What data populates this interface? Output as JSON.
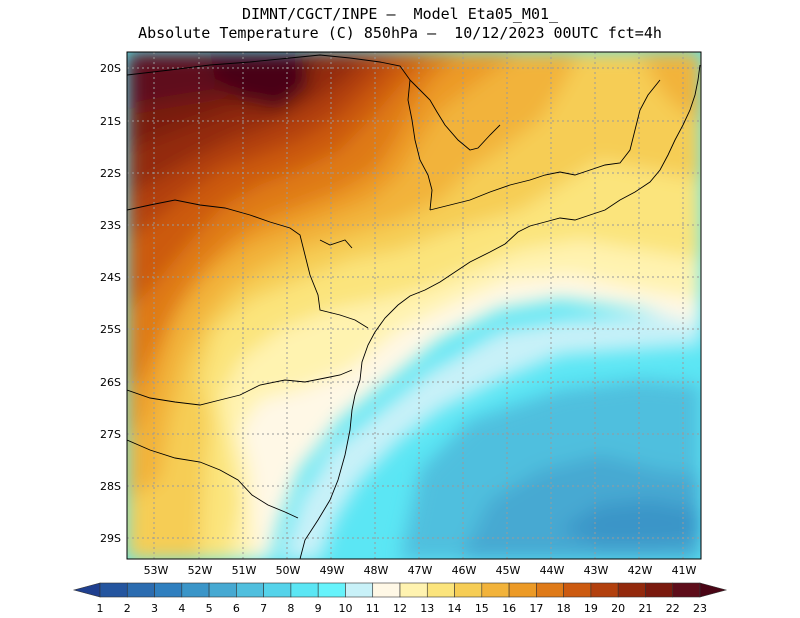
{
  "header": {
    "title_line1": "DIMNT/CGCT/INPE –  Model Eta05_M01_",
    "title_line2": "Absolute Temperature (C) 850hPa –  10/12/2023 00UTC fct=4h"
  },
  "map": {
    "lat_labels": [
      "20S",
      "21S",
      "22S",
      "23S",
      "24S",
      "25S",
      "26S",
      "27S",
      "28S",
      "29S"
    ],
    "lon_labels": [
      "53W",
      "52W",
      "51W",
      "50W",
      "49W",
      "48W",
      "47W",
      "46W",
      "45W",
      "44W",
      "43W",
      "42W",
      "41W"
    ],
    "lat_range": [
      -29.5,
      -19.2
    ],
    "lon_range": [
      -53.5,
      -40.7
    ]
  },
  "colorbar": {
    "levels": [
      "1",
      "2",
      "3",
      "4",
      "5",
      "6",
      "7",
      "8",
      "9",
      "10",
      "11",
      "12",
      "13",
      "14",
      "15",
      "16",
      "17",
      "18",
      "19",
      "20",
      "21",
      "22",
      "23"
    ],
    "colors": [
      "#1f3f8f",
      "#24559f",
      "#2b6cb0",
      "#2f7fbf",
      "#3a95c8",
      "#46a9d2",
      "#50bfde",
      "#55d3ea",
      "#5be6f4",
      "#66f3fb",
      "#c8f1f8",
      "#fff8e6",
      "#fff3b0",
      "#fbe47c",
      "#f6cd55",
      "#f2b33b",
      "#ec9a26",
      "#df7a18",
      "#cc5a10",
      "#b2400d",
      "#93290c",
      "#7a1a0e",
      "#5e0d1a",
      "#4a0515"
    ]
  }
}
